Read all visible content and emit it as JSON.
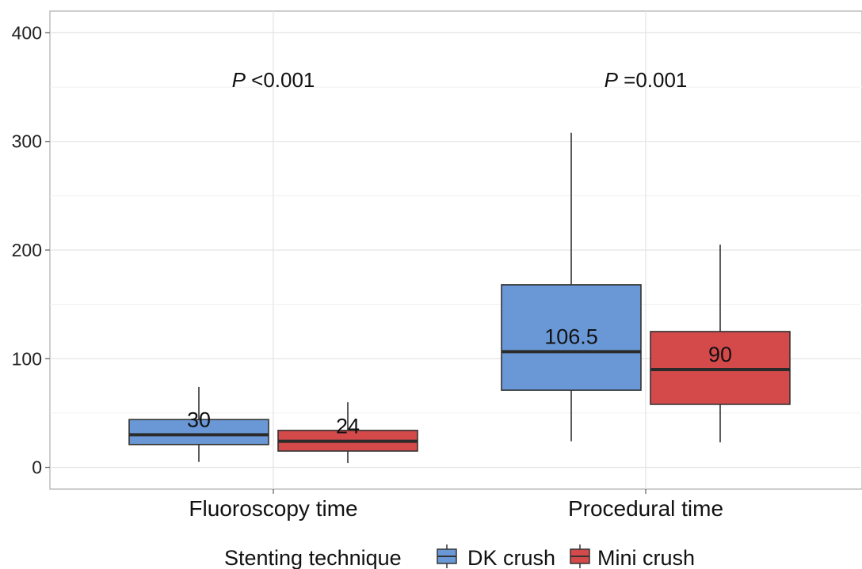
{
  "chart_data": {
    "type": "boxplot",
    "categories": [
      "Fluoroscopy time",
      "Procedural time"
    ],
    "ylim": [
      -20,
      420
    ],
    "yticks": [
      0,
      100,
      200,
      300,
      400
    ],
    "grid": true,
    "legend": {
      "title": "Stenting technique",
      "position": "bottom"
    },
    "series": [
      {
        "name": "DK crush",
        "color": "#6a98d6",
        "boxes": [
          {
            "category": "Fluoroscopy time",
            "whisker_low": 5,
            "q1": 21,
            "median": 30,
            "q3": 44,
            "whisker_high": 74,
            "median_label": "30"
          },
          {
            "category": "Procedural time",
            "whisker_low": 24,
            "q1": 71,
            "median": 106.5,
            "q3": 168,
            "whisker_high": 308,
            "median_label": "106.5"
          }
        ]
      },
      {
        "name": "Mini crush",
        "color": "#d44a4a",
        "boxes": [
          {
            "category": "Fluoroscopy time",
            "whisker_low": 4,
            "q1": 15,
            "median": 24,
            "q3": 34,
            "whisker_high": 60,
            "median_label": "24"
          },
          {
            "category": "Procedural time",
            "whisker_low": 23,
            "q1": 58,
            "median": 90,
            "q3": 125,
            "whisker_high": 205,
            "median_label": "90"
          }
        ]
      }
    ],
    "annotations": [
      {
        "category": "Fluoroscopy time",
        "italic": "P",
        "text": " <0.001",
        "y": 350
      },
      {
        "category": "Procedural time",
        "italic": "P",
        "text": " =0.001",
        "y": 350
      }
    ]
  }
}
